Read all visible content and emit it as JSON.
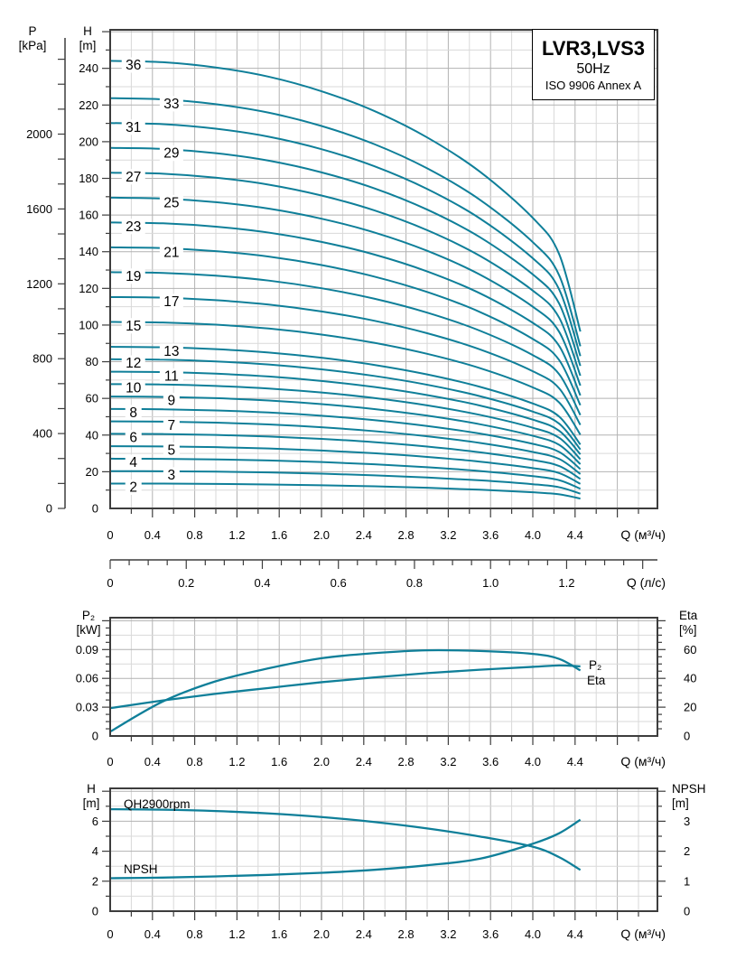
{
  "title_box": {
    "model": "LVR3,LVS3",
    "frequency": "50Hz",
    "standard": "ISO 9906 Annex A"
  },
  "axis_headers": {
    "p": {
      "label": "P",
      "unit": "[kPa]"
    },
    "h": {
      "label": "H",
      "unit": "[m]"
    },
    "p2": {
      "label": "P₂",
      "unit": "[kW]"
    },
    "eta": {
      "label": "Eta",
      "unit": "[%]"
    },
    "h2": {
      "label": "H",
      "unit": "[m]"
    },
    "npsh": {
      "label": "NPSH",
      "unit": "[m]"
    }
  },
  "colors": {
    "curve": "#0f7f99",
    "grid_minor": "#d9d9d9",
    "grid_major": "#b2b2b2",
    "axis": "#3d3d3d",
    "text": "#000000"
  },
  "chart_data": [
    {
      "type": "line",
      "title": "LVR3,LVS3",
      "subtitle": "50Hz",
      "note": "ISO 9906 Annex A",
      "xlabel": "Q (м³/ч)",
      "xlabel2": "Q (л/с)",
      "ylabel_left_outer": "P [kPa]",
      "ylabel_left_inner": "H [m]",
      "xlim": [
        0,
        5.18
      ],
      "h_lim": [
        0,
        261
      ],
      "p_lim": [
        0,
        2520
      ],
      "x_ticks": [
        0,
        0.4,
        0.8,
        1.2,
        1.6,
        2.0,
        2.4,
        2.8,
        3.2,
        3.6,
        4.0,
        4.4
      ],
      "x_tick_labels": [
        "0",
        "0.4",
        "0.8",
        "1.2",
        "1.6",
        "2.0",
        "2.4",
        "2.8",
        "3.2",
        "3.6",
        "4.0",
        "4.4"
      ],
      "x2_ticks": [
        0,
        0.2,
        0.4,
        0.6,
        0.8,
        1.0,
        1.2
      ],
      "x2_tick_labels": [
        "0",
        "0.2",
        "0.4",
        "0.6",
        "0.8",
        "1.0",
        "1.2"
      ],
      "h_ticks": [
        0,
        20,
        40,
        60,
        80,
        100,
        120,
        140,
        160,
        180,
        200,
        220,
        240
      ],
      "h_tick_labels": [
        "0",
        "20",
        "40",
        "60",
        "80",
        "100",
        "120",
        "140",
        "160",
        "180",
        "200",
        "220",
        "240"
      ],
      "p_ticks": [
        0,
        400,
        800,
        1200,
        1600,
        2000
      ],
      "p_tick_labels": [
        "0",
        "400",
        "800",
        "1200",
        "1600",
        "2000"
      ],
      "stages": [
        36,
        33,
        31,
        29,
        27,
        25,
        23,
        21,
        19,
        17,
        15,
        13,
        12,
        11,
        10,
        9,
        8,
        7,
        6,
        5,
        4,
        3,
        2
      ],
      "per_stage_curve": {
        "q": [
          0,
          0.5,
          1.0,
          1.5,
          2.0,
          2.5,
          3.0,
          3.5,
          4.0,
          4.25,
          4.45
        ],
        "h_per_stage": [
          6.78,
          6.76,
          6.68,
          6.54,
          6.32,
          6.02,
          5.62,
          5.1,
          4.4,
          3.85,
          2.68
        ]
      }
    },
    {
      "type": "line",
      "ylabel_left": "P₂ [kW]",
      "ylabel_right": "Eta [%]",
      "xlabel": "Q (м³/ч)",
      "xlim": [
        0,
        5.18
      ],
      "left_lim": [
        0,
        0.1232
      ],
      "right_lim": [
        0,
        82
      ],
      "x_ticks": [
        0,
        0.4,
        0.8,
        1.2,
        1.6,
        2.0,
        2.4,
        2.8,
        3.2,
        3.6,
        4.0,
        4.4
      ],
      "x_tick_labels": [
        "0",
        "0.4",
        "0.8",
        "1.2",
        "1.6",
        "2.0",
        "2.4",
        "2.8",
        "3.2",
        "3.6",
        "4.0",
        "4.4"
      ],
      "left_ticks": [
        0,
        0.03,
        0.06,
        0.09
      ],
      "left_tick_labels": [
        "0",
        "0.03",
        "0.06",
        "0.09"
      ],
      "right_ticks": [
        0,
        20,
        40,
        60
      ],
      "right_tick_labels": [
        "0",
        "20",
        "40",
        "60"
      ],
      "series": [
        {
          "name": "P₂",
          "axis": "left",
          "q": [
            0,
            0.5,
            1.0,
            1.5,
            2.0,
            2.5,
            3.0,
            3.5,
            4.0,
            4.25,
            4.45
          ],
          "values": [
            0.029,
            0.037,
            0.044,
            0.05,
            0.056,
            0.061,
            0.0655,
            0.069,
            0.072,
            0.0735,
            0.0725
          ]
        },
        {
          "name": "Eta",
          "axis": "right",
          "q": [
            0,
            0.5,
            1.0,
            1.5,
            2.0,
            2.5,
            3.0,
            3.5,
            4.0,
            4.25,
            4.45
          ],
          "values": [
            3,
            24,
            38,
            47,
            54,
            57.5,
            59.5,
            59,
            57,
            53.5,
            45.5
          ]
        }
      ]
    },
    {
      "type": "line",
      "ylabel_left": "H [m]",
      "ylabel_right": "NPSH [m]",
      "xlabel": "Q (м³/ч)",
      "xlim": [
        0,
        5.18
      ],
      "left_lim": [
        0,
        8.2
      ],
      "right_lim": [
        0,
        4.1
      ],
      "x_ticks": [
        0,
        0.4,
        0.8,
        1.2,
        1.6,
        2.0,
        2.4,
        2.8,
        3.2,
        3.6,
        4.0,
        4.4
      ],
      "x_tick_labels": [
        "0",
        "0.4",
        "0.8",
        "1.2",
        "1.6",
        "2.0",
        "2.4",
        "2.8",
        "3.2",
        "3.6",
        "4.0",
        "4.4"
      ],
      "left_ticks": [
        0,
        2,
        4,
        6
      ],
      "left_tick_labels": [
        "0",
        "2",
        "4",
        "6"
      ],
      "right_ticks": [
        0,
        1,
        2,
        3
      ],
      "right_tick_labels": [
        "0",
        "1",
        "2",
        "3"
      ],
      "series": [
        {
          "name": "QH2900rpm",
          "axis": "left",
          "q": [
            0,
            0.5,
            1.0,
            1.5,
            2.0,
            2.5,
            3.0,
            3.5,
            4.0,
            4.25,
            4.45
          ],
          "values": [
            6.8,
            6.77,
            6.68,
            6.52,
            6.28,
            5.95,
            5.52,
            4.98,
            4.3,
            3.6,
            2.75
          ]
        },
        {
          "name": "NPSH",
          "axis": "right",
          "q": [
            0,
            0.5,
            1.0,
            1.5,
            2.0,
            2.5,
            3.0,
            3.5,
            4.0,
            4.25,
            4.45
          ],
          "values": [
            1.1,
            1.12,
            1.16,
            1.21,
            1.28,
            1.38,
            1.53,
            1.75,
            2.25,
            2.6,
            3.05
          ]
        }
      ]
    }
  ]
}
